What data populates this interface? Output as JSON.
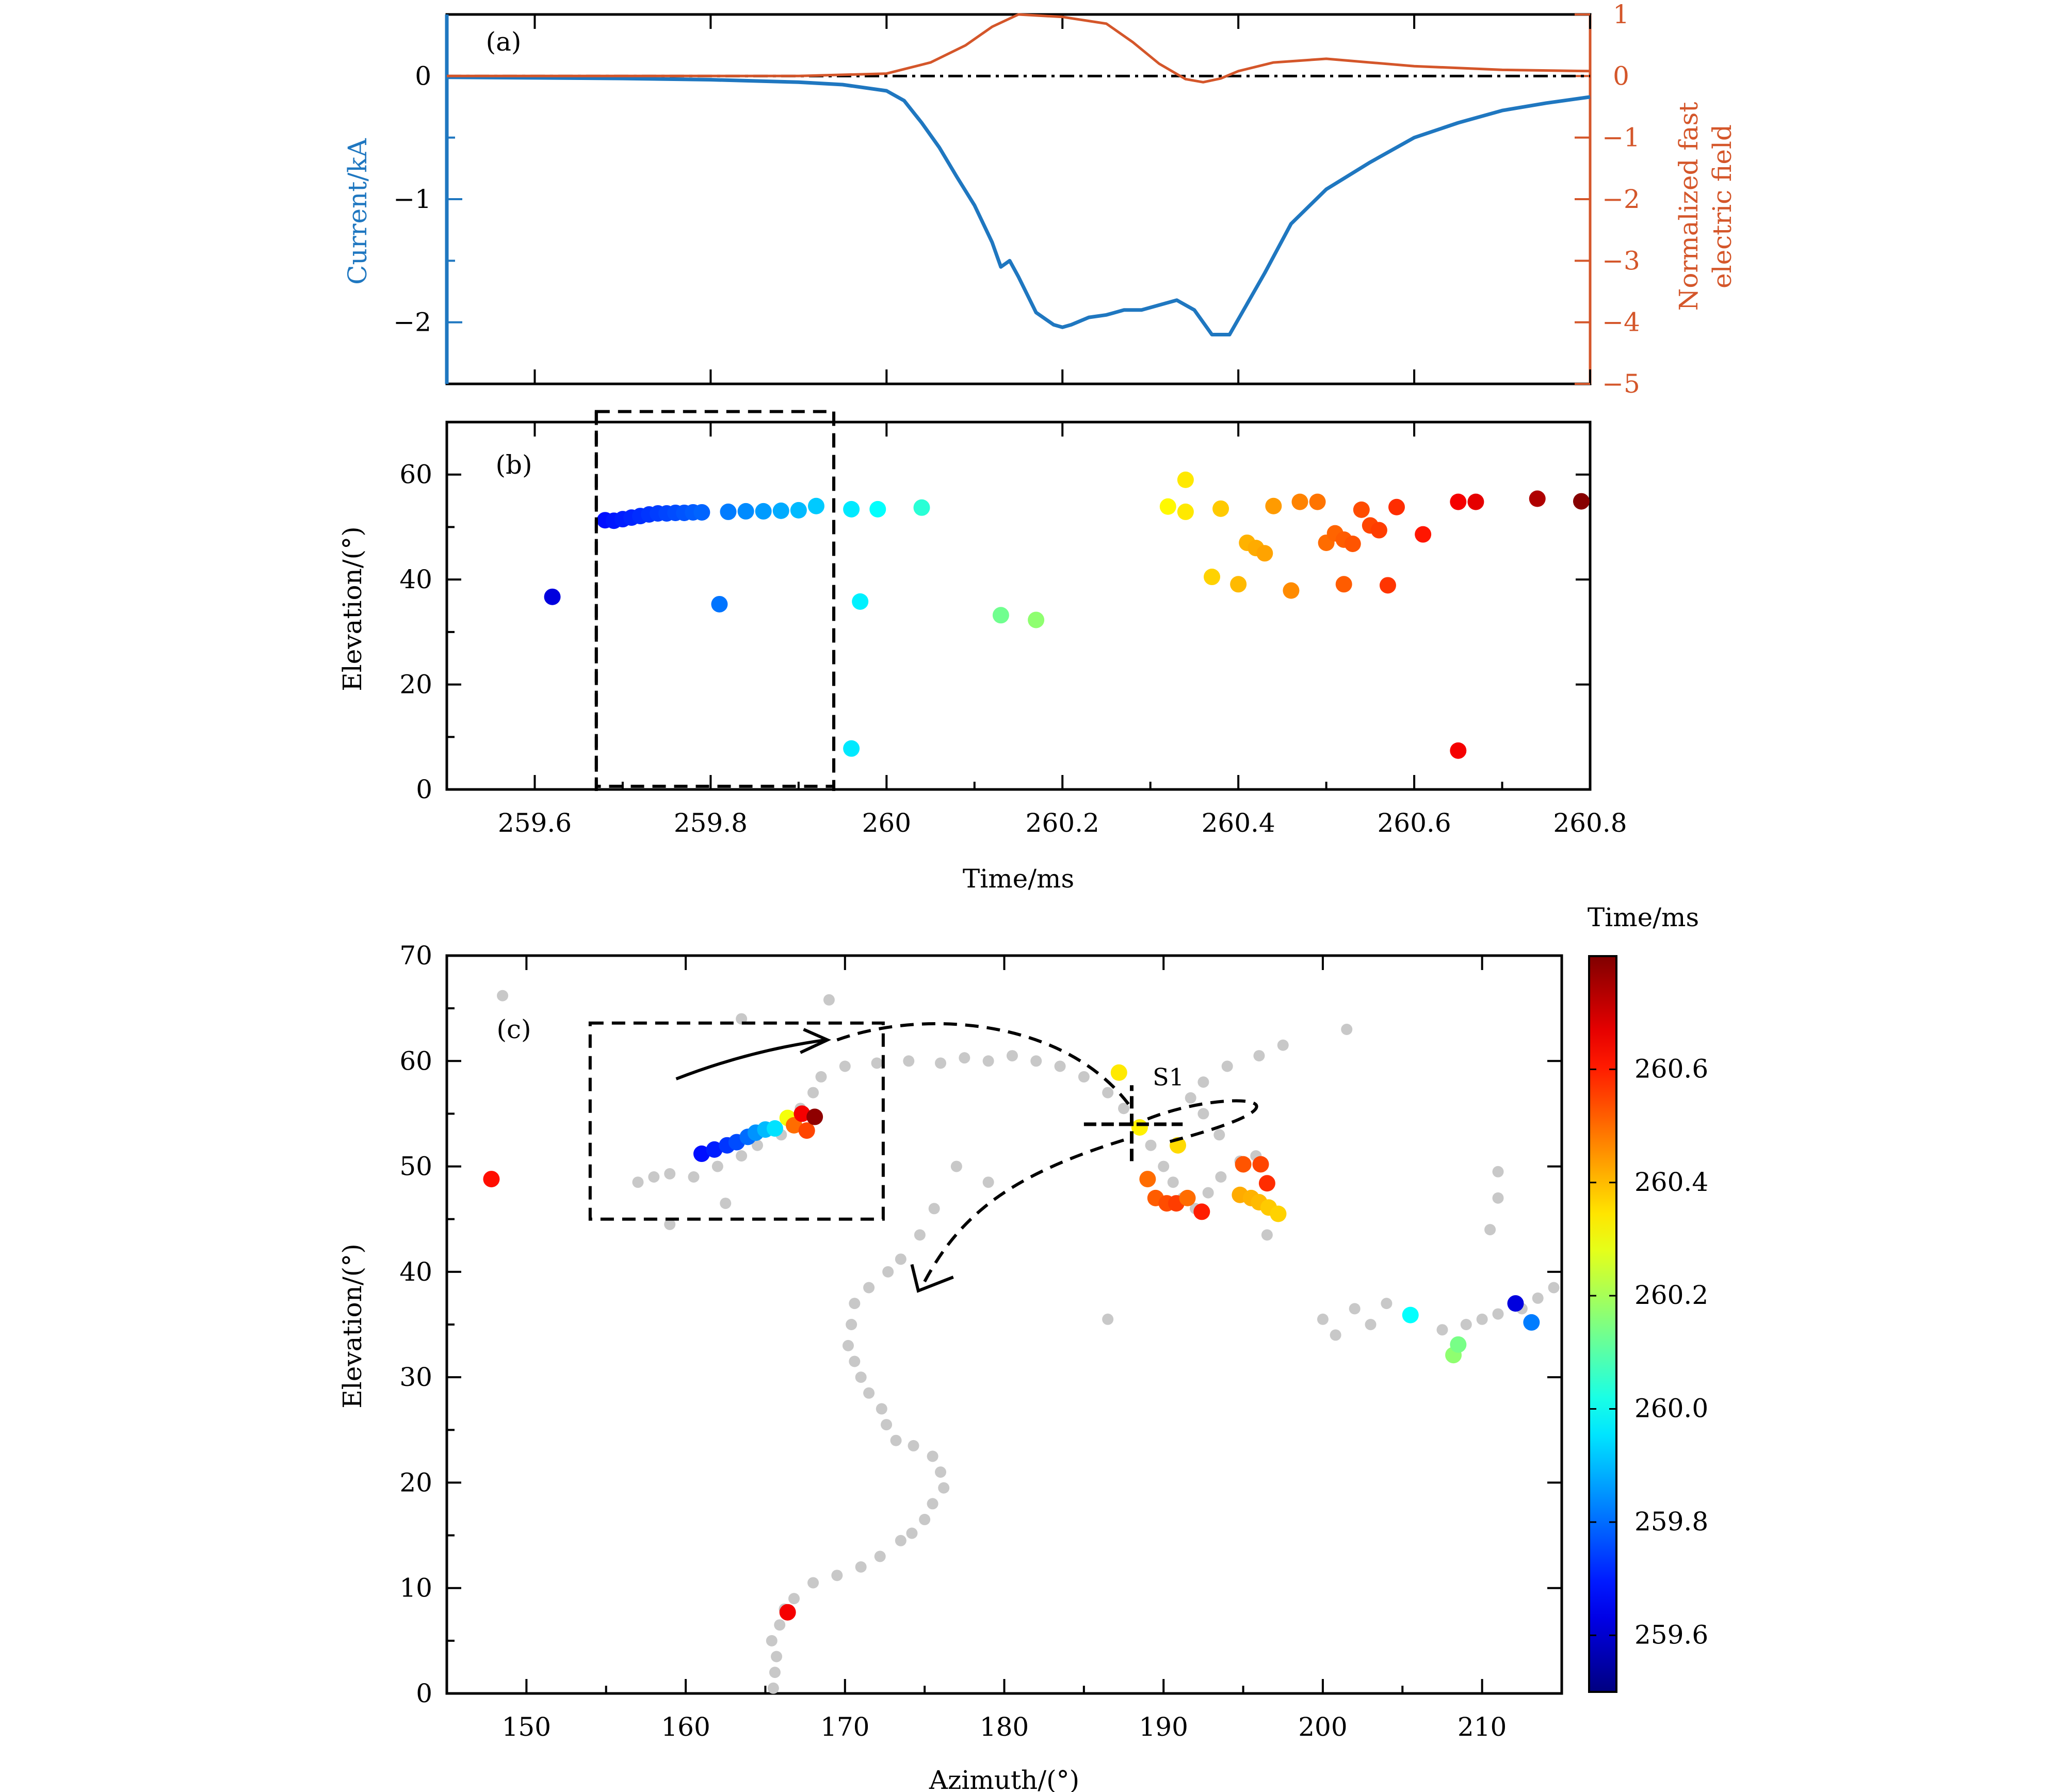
{
  "chart_data": [
    {
      "panel": "a",
      "type": "line",
      "panel_label": "(a)",
      "xlim": [
        259.5,
        260.8
      ],
      "x_ticks": [
        259.6,
        259.8,
        260,
        260.2,
        260.4,
        260.6,
        260.8
      ],
      "left_axis": {
        "label": "Current/kA",
        "ylim": [
          -2.5,
          0.5
        ],
        "ticks": [
          "0",
          "−1",
          "−2"
        ],
        "tick_values": [
          0,
          -1,
          -2
        ],
        "color": "#1f77c0"
      },
      "right_axis": {
        "label_line1": "Normalized fast",
        "label_line2": "electric field",
        "ylim": [
          -5,
          1
        ],
        "ticks": [
          "1",
          "0",
          "−1",
          "−2",
          "−3",
          "−4",
          "−5"
        ],
        "tick_values": [
          1,
          0,
          -1,
          -2,
          -3,
          -4,
          -5
        ],
        "color": "#d4562a"
      },
      "series": [
        {
          "axis": "left",
          "color": "#1f77c0",
          "x": [
            259.5,
            259.6,
            259.7,
            259.8,
            259.9,
            259.95,
            260.0,
            260.02,
            260.04,
            260.06,
            260.08,
            260.1,
            260.12,
            260.13,
            260.14,
            260.15,
            260.17,
            260.19,
            260.2,
            260.21,
            260.23,
            260.25,
            260.27,
            260.29,
            260.31,
            260.33,
            260.35,
            260.37,
            260.39,
            260.41,
            260.43,
            260.46,
            260.5,
            260.55,
            260.6,
            260.65,
            260.7,
            260.75,
            260.8
          ],
          "y": [
            -0.01,
            -0.015,
            -0.02,
            -0.03,
            -0.05,
            -0.07,
            -0.12,
            -0.2,
            -0.38,
            -0.58,
            -0.82,
            -1.05,
            -1.35,
            -1.55,
            -1.5,
            -1.63,
            -1.92,
            -2.02,
            -2.04,
            -2.02,
            -1.96,
            -1.94,
            -1.9,
            -1.9,
            -1.86,
            -1.82,
            -1.9,
            -2.1,
            -2.1,
            -1.85,
            -1.6,
            -1.2,
            -0.92,
            -0.7,
            -0.5,
            -0.38,
            -0.28,
            -0.22,
            -0.17
          ]
        },
        {
          "axis": "right",
          "color": "#d4562a",
          "x": [
            259.5,
            259.9,
            260.0,
            260.05,
            260.09,
            260.12,
            260.15,
            260.2,
            260.25,
            260.28,
            260.31,
            260.34,
            260.36,
            260.38,
            260.4,
            260.44,
            260.5,
            260.55,
            260.6,
            260.7,
            260.8
          ],
          "y": [
            0.0,
            0.0,
            0.04,
            0.22,
            0.5,
            0.8,
            1.0,
            0.96,
            0.85,
            0.55,
            0.2,
            -0.05,
            -0.1,
            -0.04,
            0.08,
            0.22,
            0.28,
            0.22,
            0.16,
            0.1,
            0.08
          ]
        }
      ],
      "reference_line": {
        "axis": "left",
        "y": 0,
        "style": "dash-dot"
      }
    },
    {
      "panel": "b",
      "type": "scatter",
      "panel_label": "(b)",
      "xlabel": "Time/ms",
      "ylabel": "Elevation/(°)",
      "xlim": [
        259.5,
        260.8
      ],
      "ylim": [
        0,
        70
      ],
      "x_ticks": [
        "259.6",
        "259.8",
        "260",
        "260.2",
        "260.4",
        "260.6",
        "260.8"
      ],
      "x_tick_values": [
        259.6,
        259.8,
        260,
        260.2,
        260.4,
        260.6,
        260.8
      ],
      "y_ticks": [
        "0",
        "20",
        "40",
        "60"
      ],
      "y_tick_values": [
        0,
        20,
        40,
        60
      ],
      "points": [
        [
          259.62,
          36.7
        ],
        [
          259.68,
          51.3
        ],
        [
          259.69,
          51.2
        ],
        [
          259.7,
          51.5
        ],
        [
          259.71,
          51.8
        ],
        [
          259.72,
          52.1
        ],
        [
          259.73,
          52.4
        ],
        [
          259.74,
          52.6
        ],
        [
          259.75,
          52.6
        ],
        [
          259.76,
          52.7
        ],
        [
          259.77,
          52.7
        ],
        [
          259.78,
          52.8
        ],
        [
          259.79,
          52.8
        ],
        [
          259.81,
          35.3
        ],
        [
          259.82,
          52.9
        ],
        [
          259.84,
          53.0
        ],
        [
          259.86,
          53.0
        ],
        [
          259.88,
          53.1
        ],
        [
          259.9,
          53.2
        ],
        [
          259.92,
          54.0
        ],
        [
          259.96,
          53.4
        ],
        [
          259.96,
          7.8
        ],
        [
          259.97,
          35.8
        ],
        [
          259.99,
          53.4
        ],
        [
          260.04,
          53.7
        ],
        [
          260.13,
          33.2
        ],
        [
          260.17,
          32.3
        ],
        [
          260.32,
          53.9
        ],
        [
          260.34,
          59.0
        ],
        [
          260.34,
          52.9
        ],
        [
          260.37,
          40.5
        ],
        [
          260.38,
          53.5
        ],
        [
          260.4,
          39.1
        ],
        [
          260.41,
          47.0
        ],
        [
          260.42,
          46.0
        ],
        [
          260.43,
          45.0
        ],
        [
          260.44,
          54.0
        ],
        [
          260.46,
          37.9
        ],
        [
          260.47,
          54.8
        ],
        [
          260.49,
          54.8
        ],
        [
          260.5,
          47.0
        ],
        [
          260.51,
          48.8
        ],
        [
          260.52,
          39.1
        ],
        [
          260.52,
          47.6
        ],
        [
          260.53,
          46.8
        ],
        [
          260.54,
          53.3
        ],
        [
          260.55,
          50.3
        ],
        [
          260.56,
          49.4
        ],
        [
          260.57,
          38.9
        ],
        [
          260.58,
          53.8
        ],
        [
          260.61,
          48.6
        ],
        [
          260.65,
          54.8
        ],
        [
          260.65,
          7.4
        ],
        [
          260.67,
          54.8
        ],
        [
          260.74,
          55.4
        ],
        [
          260.79,
          54.9
        ]
      ],
      "highlight_box": {
        "x_range": [
          259.67,
          259.94
        ],
        "y_range": [
          0.6,
          72
        ]
      }
    },
    {
      "panel": "c",
      "type": "scatter",
      "panel_label": "(c)",
      "xlabel": "Azimuth/(°)",
      "ylabel": "Elevation/(°)",
      "xlim": [
        145,
        215
      ],
      "ylim": [
        0,
        70
      ],
      "x_ticks": [
        "150",
        "160",
        "170",
        "180",
        "190",
        "200",
        "210"
      ],
      "x_tick_values": [
        150,
        160,
        170,
        180,
        190,
        200,
        210
      ],
      "y_ticks": [
        "0",
        "10",
        "20",
        "30",
        "40",
        "50",
        "60",
        "70"
      ],
      "y_tick_values": [
        0,
        10,
        20,
        30,
        40,
        50,
        60,
        70
      ],
      "annotation": "S1",
      "annotation_point": [
        188,
        54
      ],
      "colorbar": {
        "label": "Time/ms",
        "range": [
          259.5,
          260.8
        ],
        "ticks": [
          "259.6",
          "259.8",
          "260.0",
          "260.2",
          "260.4",
          "260.6"
        ],
        "tick_values": [
          259.6,
          259.8,
          260.0,
          260.2,
          260.4,
          260.6
        ]
      },
      "gray_points": [
        [
          165.5,
          0.5
        ],
        [
          165.6,
          2.0
        ],
        [
          165.7,
          3.5
        ],
        [
          165.4,
          5.0
        ],
        [
          165.9,
          6.5
        ],
        [
          166.2,
          8.0
        ],
        [
          166.8,
          9.0
        ],
        [
          168.0,
          10.5
        ],
        [
          169.5,
          11.2
        ],
        [
          171.0,
          12.0
        ],
        [
          172.2,
          13.0
        ],
        [
          173.5,
          14.5
        ],
        [
          174.2,
          15.2
        ],
        [
          175.0,
          16.5
        ],
        [
          175.5,
          18.0
        ],
        [
          176.2,
          19.5
        ],
        [
          176.0,
          21.0
        ],
        [
          175.5,
          22.5
        ],
        [
          174.3,
          23.5
        ],
        [
          173.2,
          24.0
        ],
        [
          172.6,
          25.5
        ],
        [
          172.3,
          27.0
        ],
        [
          171.5,
          28.5
        ],
        [
          171.0,
          30.0
        ],
        [
          170.6,
          31.5
        ],
        [
          170.2,
          33.0
        ],
        [
          170.4,
          35.0
        ],
        [
          170.6,
          37.0
        ],
        [
          171.5,
          38.5
        ],
        [
          172.7,
          40.0
        ],
        [
          173.5,
          41.2
        ],
        [
          177.0,
          50.0
        ],
        [
          179.0,
          48.5
        ],
        [
          175.6,
          46.0
        ],
        [
          174.7,
          43.5
        ],
        [
          186.5,
          35.5
        ],
        [
          157.0,
          48.5
        ],
        [
          158.0,
          49.0
        ],
        [
          159.0,
          49.3
        ],
        [
          160.5,
          49.0
        ],
        [
          162.0,
          50.0
        ],
        [
          163.5,
          51.0
        ],
        [
          164.5,
          52.0
        ],
        [
          166.0,
          53.0
        ],
        [
          166.8,
          54.0
        ],
        [
          167.2,
          55.5
        ],
        [
          168.0,
          57.0
        ],
        [
          168.5,
          58.5
        ],
        [
          170.0,
          59.5
        ],
        [
          172.0,
          59.8
        ],
        [
          174.0,
          60.0
        ],
        [
          176.0,
          59.8
        ],
        [
          177.5,
          60.3
        ],
        [
          179.0,
          60.0
        ],
        [
          180.5,
          60.5
        ],
        [
          182.0,
          60.0
        ],
        [
          183.5,
          59.5
        ],
        [
          185.0,
          58.5
        ],
        [
          186.5,
          57.0
        ],
        [
          187.5,
          55.5
        ],
        [
          188.5,
          53.5
        ],
        [
          189.2,
          52.0
        ],
        [
          190.0,
          50.0
        ],
        [
          190.6,
          48.5
        ],
        [
          191.2,
          47.0
        ],
        [
          192.0,
          46.0
        ],
        [
          192.8,
          47.5
        ],
        [
          193.6,
          49.0
        ],
        [
          194.8,
          50.5
        ],
        [
          195.8,
          51.0
        ],
        [
          193.5,
          53.0
        ],
        [
          192.5,
          55.0
        ],
        [
          191.7,
          56.5
        ],
        [
          192.5,
          58.0
        ],
        [
          194.0,
          59.5
        ],
        [
          196.0,
          60.5
        ],
        [
          197.5,
          61.5
        ],
        [
          148.5,
          66.2
        ],
        [
          163.5,
          64.0
        ],
        [
          169.0,
          65.8
        ],
        [
          162.5,
          46.5
        ],
        [
          159.0,
          44.5
        ],
        [
          201.5,
          63.0
        ],
        [
          200.0,
          35.5
        ],
        [
          200.8,
          34.0
        ],
        [
          202.0,
          36.5
        ],
        [
          203.0,
          35.0
        ],
        [
          204.0,
          37.0
        ],
        [
          207.5,
          34.5
        ],
        [
          209.0,
          35.0
        ],
        [
          210.0,
          35.5
        ],
        [
          211.0,
          36.0
        ],
        [
          212.5,
          36.5
        ],
        [
          213.5,
          37.5
        ],
        [
          214.5,
          38.5
        ],
        [
          211.0,
          49.5
        ],
        [
          211.0,
          47.0
        ],
        [
          210.5,
          44.0
        ],
        [
          196.5,
          43.5
        ]
      ],
      "colored_points": [
        [
          147.8,
          48.8,
          260.62
        ],
        [
          161.0,
          51.2,
          259.68
        ],
        [
          161.8,
          51.6,
          259.7
        ],
        [
          162.6,
          52.0,
          259.73
        ],
        [
          163.2,
          52.3,
          259.76
        ],
        [
          163.9,
          52.8,
          259.8
        ],
        [
          164.4,
          53.2,
          259.85
        ],
        [
          165.0,
          53.5,
          259.9
        ],
        [
          165.6,
          53.6,
          259.95
        ],
        [
          166.4,
          54.6,
          260.3
        ],
        [
          166.8,
          53.9,
          260.5
        ],
        [
          167.3,
          55.0,
          260.65
        ],
        [
          167.6,
          53.4,
          260.55
        ],
        [
          168.1,
          54.7,
          260.78
        ],
        [
          166.4,
          7.7,
          260.65
        ],
        [
          187.2,
          58.9,
          260.34
        ],
        [
          188.5,
          53.7,
          260.33
        ],
        [
          190.9,
          52.0,
          260.36
        ],
        [
          189.0,
          48.8,
          260.5
        ],
        [
          189.5,
          47.0,
          260.52
        ],
        [
          190.2,
          46.5,
          260.54
        ],
        [
          190.8,
          46.5,
          260.56
        ],
        [
          191.5,
          47.0,
          260.5
        ],
        [
          192.4,
          45.7,
          260.6
        ],
        [
          194.8,
          47.3,
          260.42
        ],
        [
          195.5,
          47.0,
          260.41
        ],
        [
          196.0,
          46.6,
          260.4
        ],
        [
          196.6,
          46.1,
          260.38
        ],
        [
          197.2,
          45.5,
          260.37
        ],
        [
          195.0,
          50.2,
          260.53
        ],
        [
          196.1,
          50.2,
          260.55
        ],
        [
          196.5,
          48.4,
          260.58
        ],
        [
          205.5,
          35.9,
          259.99
        ],
        [
          208.2,
          32.1,
          260.17
        ],
        [
          208.5,
          33.1,
          260.14
        ],
        [
          212.1,
          37.0,
          259.62
        ],
        [
          213.1,
          35.2,
          259.82
        ]
      ],
      "highlight_box": {
        "x_range": [
          154,
          172.4
        ],
        "y_range": [
          45,
          63.6
        ]
      }
    }
  ]
}
